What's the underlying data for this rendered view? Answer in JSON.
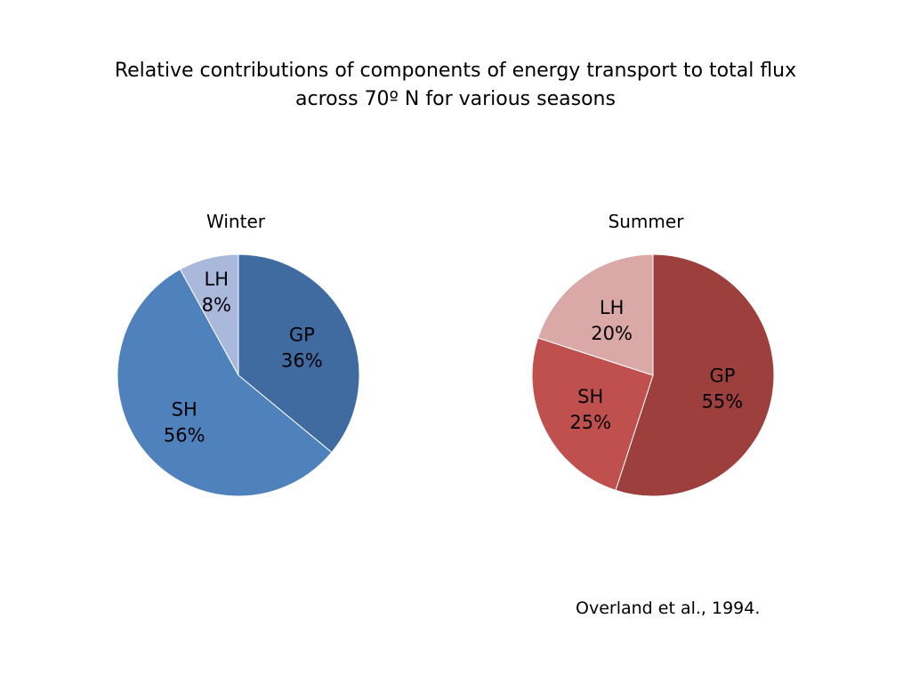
{
  "title_line1": "Relative contributions of components of energy transport to total flux",
  "title_line2": "across 70º N for various seasons",
  "citation": "Overland et al., 1994.",
  "chart_data": [
    {
      "type": "pie",
      "title": "Winter",
      "slices": [
        {
          "name": "GP",
          "value": 36,
          "label": "36%",
          "color": "#3f6ba0"
        },
        {
          "name": "SH",
          "value": 56,
          "label": "56%",
          "color": "#4f81bd"
        },
        {
          "name": "LH",
          "value": 8,
          "label": "8%",
          "color": "#a9b8db"
        }
      ]
    },
    {
      "type": "pie",
      "title": "Summer",
      "slices": [
        {
          "name": "GP",
          "value": 55,
          "label": "55%",
          "color": "#9d3f3d"
        },
        {
          "name": "SH",
          "value": 25,
          "label": "25%",
          "color": "#c0504d"
        },
        {
          "name": "LH",
          "value": 20,
          "label": "20%",
          "color": "#d9a8a7"
        }
      ]
    }
  ]
}
